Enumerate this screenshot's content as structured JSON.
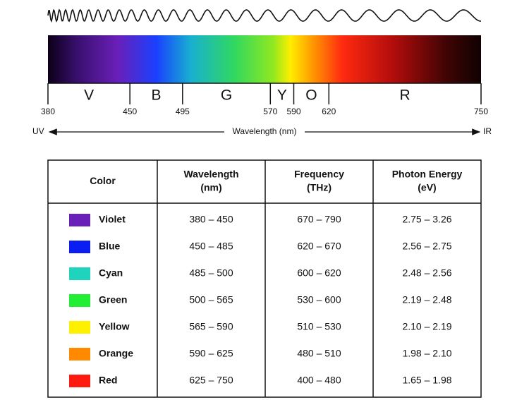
{
  "spectrum": {
    "ticks": [
      380,
      450,
      495,
      570,
      590,
      620,
      750
    ],
    "bands": [
      "V",
      "B",
      "G",
      "Y",
      "O",
      "R"
    ],
    "axis": {
      "left": "UV",
      "label": "Wavelength (nm)",
      "right": "IR"
    }
  },
  "table": {
    "headers": [
      [
        "Color"
      ],
      [
        "Wavelength",
        "(nm)"
      ],
      [
        "Frequency",
        "(THz)"
      ],
      [
        "Photon Energy",
        "(eV)"
      ]
    ],
    "rows": [
      {
        "color": "Violet",
        "swatch": "#6a1fb8",
        "wavelength": "380 – 450",
        "frequency": "670 – 790",
        "energy": "2.75 – 3.26"
      },
      {
        "color": "Blue",
        "swatch": "#0a1ef2",
        "wavelength": "450 – 485",
        "frequency": "620 – 670",
        "energy": "2.56 – 2.75"
      },
      {
        "color": "Cyan",
        "swatch": "#1fd3bd",
        "wavelength": "485 – 500",
        "frequency": "600 – 620",
        "energy": "2.48 – 2.56"
      },
      {
        "color": "Green",
        "swatch": "#22ee33",
        "wavelength": "500 – 565",
        "frequency": "530 – 600",
        "energy": "2.19 – 2.48"
      },
      {
        "color": "Yellow",
        "swatch": "#fff000",
        "wavelength": "565 – 590",
        "frequency": "510 – 530",
        "energy": "2.10 – 2.19"
      },
      {
        "color": "Orange",
        "swatch": "#ff8a00",
        "wavelength": "590 – 625",
        "frequency": "480 – 510",
        "energy": "1.98 – 2.10"
      },
      {
        "color": "Red",
        "swatch": "#ff1a10",
        "wavelength": "625 – 750",
        "frequency": "400 – 480",
        "energy": "1.65 – 1.98"
      }
    ]
  }
}
